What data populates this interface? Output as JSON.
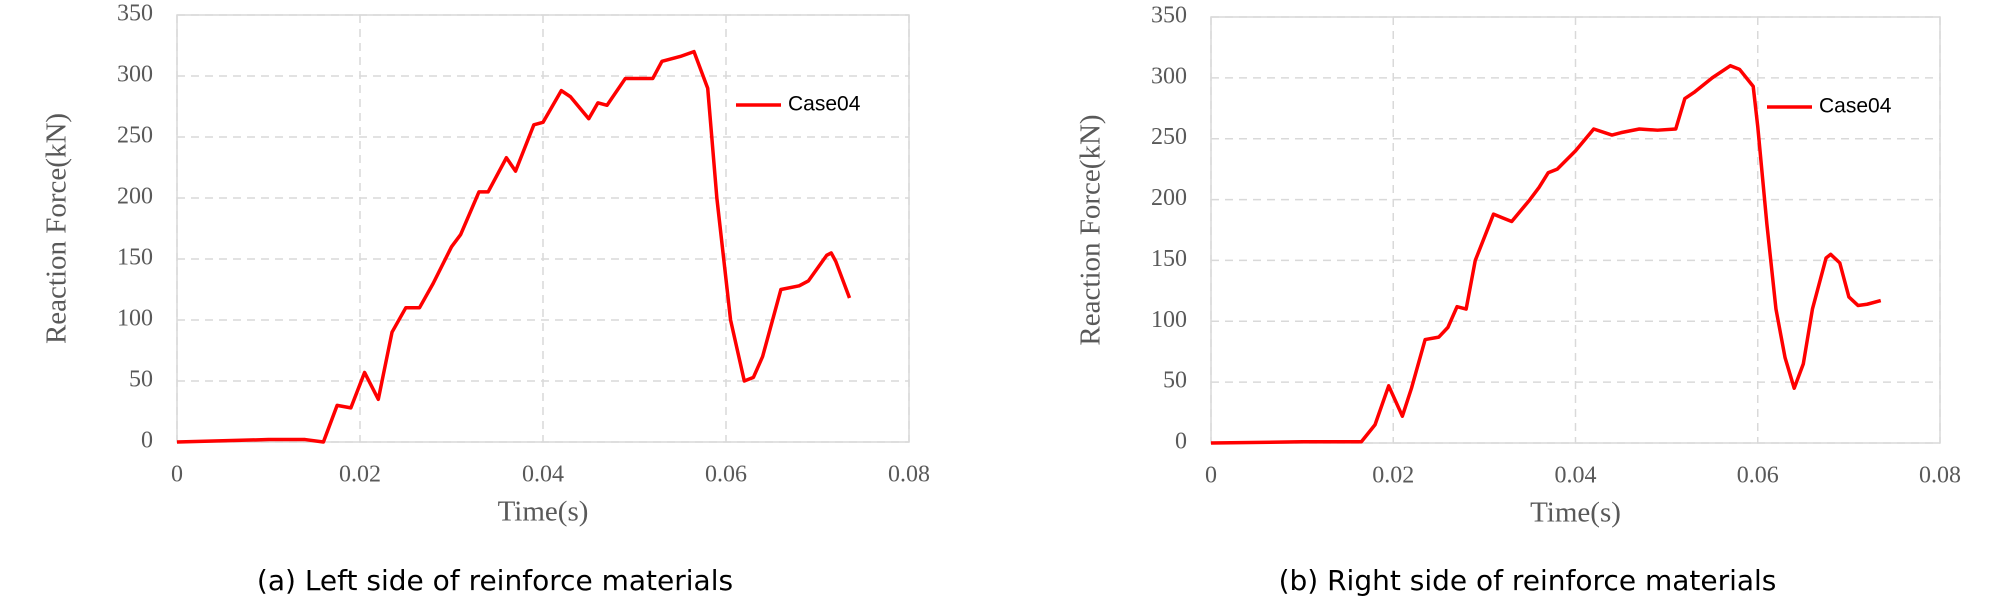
{
  "chart_data": [
    {
      "type": "line",
      "caption": "(a) Left side of reinforce materials",
      "xlabel": "Time(s)",
      "ylabel": "Reaction Force(kN)",
      "xlim": [
        0,
        0.08
      ],
      "xticks": [
        0,
        0.02,
        0.04,
        0.06,
        0.08
      ],
      "ylim": [
        0,
        350
      ],
      "yticks": [
        0,
        50,
        100,
        150,
        200,
        250,
        300,
        350
      ],
      "grid": true,
      "legend": "right",
      "x": [
        0,
        0.005,
        0.01,
        0.014,
        0.016,
        0.0175,
        0.019,
        0.0205,
        0.022,
        0.0235,
        0.025,
        0.0265,
        0.028,
        0.03,
        0.031,
        0.033,
        0.034,
        0.036,
        0.037,
        0.039,
        0.04,
        0.042,
        0.043,
        0.045,
        0.046,
        0.047,
        0.049,
        0.051,
        0.052,
        0.053,
        0.055,
        0.0565,
        0.058,
        0.059,
        0.0605,
        0.062,
        0.063,
        0.064,
        0.066,
        0.068,
        0.069,
        0.071,
        0.0715,
        0.072,
        0.0735
      ],
      "series": [
        {
          "name": "Case04",
          "color": "#ff0000",
          "values": [
            0,
            1,
            2,
            2,
            0,
            30,
            28,
            57,
            35,
            90,
            110,
            110,
            130,
            160,
            170,
            205,
            205,
            233,
            222,
            260,
            262,
            288,
            283,
            265,
            278,
            276,
            298,
            298,
            298,
            312,
            316,
            320,
            290,
            200,
            100,
            50,
            53,
            70,
            125,
            128,
            132,
            153,
            155,
            148,
            118
          ]
        }
      ]
    },
    {
      "type": "line",
      "caption": "(b) Right side of reinforce materials",
      "xlabel": "Time(s)",
      "ylabel": "Reaction Force(kN)",
      "xlim": [
        0,
        0.08
      ],
      "xticks": [
        0,
        0.02,
        0.04,
        0.06,
        0.08
      ],
      "ylim": [
        0,
        350
      ],
      "yticks": [
        0,
        50,
        100,
        150,
        200,
        250,
        300,
        350
      ],
      "grid": true,
      "legend": "right",
      "x": [
        0,
        0.01,
        0.0165,
        0.018,
        0.0195,
        0.021,
        0.022,
        0.0235,
        0.025,
        0.026,
        0.027,
        0.028,
        0.029,
        0.031,
        0.032,
        0.033,
        0.035,
        0.036,
        0.037,
        0.038,
        0.04,
        0.042,
        0.044,
        0.045,
        0.047,
        0.049,
        0.051,
        0.052,
        0.053,
        0.055,
        0.057,
        0.058,
        0.0595,
        0.06,
        0.061,
        0.062,
        0.063,
        0.064,
        0.065,
        0.066,
        0.0675,
        0.068,
        0.069,
        0.07,
        0.071,
        0.072,
        0.0735
      ],
      "series": [
        {
          "name": "Case04",
          "color": "#ff0000",
          "values": [
            0,
            1,
            1,
            15,
            47,
            22,
            45,
            85,
            87,
            95,
            112,
            110,
            150,
            188,
            185,
            182,
            200,
            210,
            222,
            225,
            240,
            258,
            253,
            255,
            258,
            257,
            258,
            283,
            288,
            300,
            310,
            307,
            293,
            260,
            180,
            110,
            70,
            45,
            65,
            110,
            152,
            155,
            148,
            120,
            113,
            114,
            117
          ]
        }
      ]
    }
  ]
}
